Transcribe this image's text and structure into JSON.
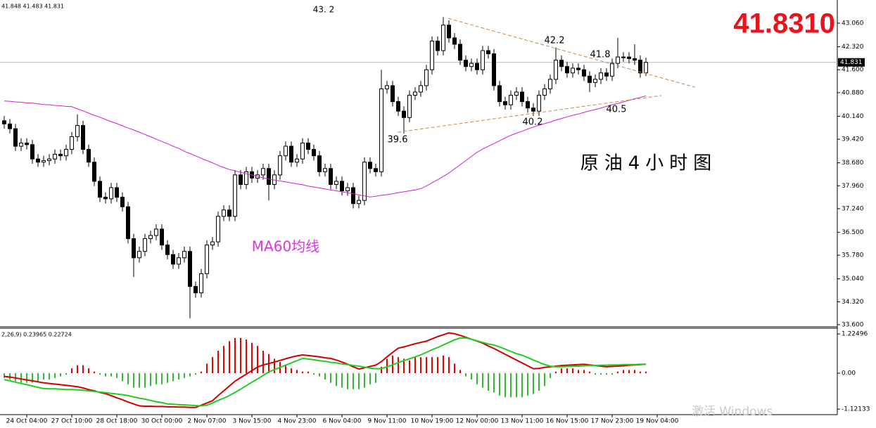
{
  "chart_data": {
    "type": "candlestick",
    "header": "41.848 41.483 41.831",
    "big_price": "41.8310",
    "annotations": [
      "43. 2",
      "42.2",
      "41.8",
      "39.6",
      "40.2",
      "40.5",
      "原油4小时图",
      "MA60均线"
    ],
    "watermark": "激活 Windows",
    "categories": [
      null,
      null,
      null,
      null,
      "24 Oct 04:00",
      null,
      null,
      null,
      null,
      null,
      null,
      null,
      "27 Oct 10:00",
      null,
      null,
      null,
      null,
      null,
      null,
      null,
      "28 Oct 18:00",
      null,
      null,
      null,
      null,
      null,
      null,
      null,
      "30 Oct 00:00",
      null,
      null,
      null,
      null,
      null,
      null,
      null,
      "2 Nov 07:00",
      null,
      null,
      null,
      null,
      null,
      null,
      null,
      "3 Nov 15:00",
      null,
      null,
      null,
      null,
      null,
      null,
      null,
      "4 Nov 23:00",
      null,
      null,
      null,
      null,
      null,
      null,
      null,
      "6 Nov 04:00",
      null,
      null,
      null,
      null,
      null,
      null,
      null,
      "9 Nov 11:00",
      null,
      null,
      null,
      null,
      null,
      null,
      null,
      "10 Nov 19:00",
      null,
      null,
      null,
      null,
      null,
      null,
      null,
      "12 Nov 00:00",
      null,
      null,
      null,
      null,
      null,
      null,
      null,
      "13 Nov 11:00",
      null,
      null,
      null,
      null,
      null,
      null,
      null,
      "16 Nov 15:00",
      null,
      null,
      null,
      null,
      null,
      null,
      null,
      "17 Nov 23:00",
      null,
      null,
      null,
      null,
      null,
      null,
      null,
      "19 Nov 04:00"
    ],
    "open": [
      40.0,
      39.9,
      39.75,
      39.2,
      39.3,
      39.25,
      38.8,
      38.7,
      38.75,
      38.8,
      38.95,
      38.9,
      39.1,
      39.5,
      39.85,
      39.1,
      38.7,
      38.1,
      37.6,
      37.55,
      37.9,
      37.6,
      37.3,
      36.3,
      35.7,
      35.9,
      36.3,
      36.4,
      36.6,
      36.1,
      35.8,
      35.5,
      35.7,
      35.9,
      34.8,
      34.6,
      35.2,
      36.1,
      36.2,
      37.0,
      37.2,
      37.0,
      38.3,
      38.0,
      38.4,
      38.2,
      38.3,
      38.5,
      38.0,
      38.3,
      38.9,
      39.2,
      38.7,
      38.8,
      39.3,
      39.1,
      38.9,
      38.4,
      38.5,
      38.0,
      38.1,
      37.8,
      37.9,
      37.4,
      37.5,
      38.7,
      38.5,
      38.4,
      41.0,
      41.1,
      40.6,
      40.3,
      40.1,
      40.8,
      40.9,
      41.1,
      41.6,
      42.5,
      42.2,
      43.0,
      42.6,
      42.4,
      41.9,
      41.7,
      41.8,
      41.6,
      42.2,
      42.1,
      41.1,
      40.6,
      40.5,
      40.8,
      40.9,
      40.6,
      40.4,
      40.3,
      40.8,
      41.0,
      41.3,
      41.9,
      41.7,
      41.5,
      41.65,
      41.6,
      41.4,
      41.2,
      41.3,
      41.5,
      41.4,
      41.8,
      42.0,
      42.0,
      41.95,
      41.9,
      41.5,
      null,
      null
    ],
    "high": [
      40.15,
      40.05,
      39.9,
      39.45,
      39.45,
      39.4,
      38.95,
      38.9,
      38.95,
      39.1,
      39.1,
      39.25,
      39.65,
      40.2,
      40.0,
      39.25,
      38.85,
      38.25,
      37.75,
      38.05,
      38.05,
      37.75,
      37.45,
      36.45,
      36.05,
      36.45,
      36.55,
      36.75,
      36.75,
      36.25,
      35.95,
      35.85,
      36.05,
      36.05,
      34.95,
      35.35,
      36.25,
      36.35,
      37.15,
      37.35,
      37.35,
      38.45,
      38.45,
      38.55,
      38.55,
      38.45,
      38.65,
      38.65,
      38.45,
      39.05,
      39.35,
      39.35,
      38.95,
      39.45,
      39.45,
      39.25,
      39.05,
      38.65,
      38.65,
      38.25,
      38.25,
      38.05,
      38.05,
      37.65,
      38.85,
      38.85,
      38.65,
      41.6,
      41.25,
      41.25,
      40.75,
      40.45,
      40.95,
      41.05,
      41.25,
      41.75,
      42.65,
      42.65,
      43.25,
      43.15,
      42.75,
      42.55,
      42.05,
      41.95,
      41.95,
      42.35,
      42.35,
      42.25,
      41.25,
      40.75,
      40.95,
      41.05,
      41.05,
      40.75,
      40.55,
      40.95,
      41.15,
      41.45,
      42.3,
      42.05,
      41.85,
      41.8,
      41.8,
      41.75,
      41.55,
      41.45,
      41.65,
      41.65,
      41.95,
      42.6,
      42.15,
      42.15,
      42.4,
      42.05,
      41.98,
      null,
      null
    ],
    "low": [
      39.75,
      39.6,
      39.05,
      39.05,
      39.1,
      38.65,
      38.55,
      38.55,
      38.6,
      38.65,
      38.75,
      38.75,
      38.95,
      39.35,
      38.95,
      38.55,
      37.95,
      37.45,
      37.4,
      37.4,
      37.45,
      37.15,
      36.15,
      35.1,
      35.55,
      35.75,
      36.15,
      36.25,
      35.95,
      35.65,
      35.35,
      35.35,
      35.55,
      33.8,
      34.45,
      34.45,
      35.05,
      35.95,
      36.05,
      36.85,
      36.85,
      36.85,
      37.85,
      37.85,
      38.05,
      38.05,
      38.15,
      37.5,
      37.85,
      38.15,
      38.75,
      38.55,
      38.55,
      38.65,
      38.95,
      38.75,
      38.25,
      38.25,
      37.85,
      37.85,
      37.65,
      37.65,
      37.25,
      37.25,
      37.35,
      38.35,
      38.25,
      38.25,
      40.85,
      40.45,
      40.15,
      39.6,
      39.95,
      40.65,
      40.75,
      40.95,
      41.45,
      42.05,
      42.05,
      42.45,
      42.25,
      41.75,
      41.55,
      41.55,
      41.45,
      41.45,
      41.95,
      40.95,
      40.45,
      40.35,
      40.35,
      40.65,
      40.45,
      40.25,
      40.15,
      40.15,
      40.65,
      40.85,
      41.15,
      41.55,
      41.35,
      41.35,
      41.45,
      41.25,
      40.9,
      41.05,
      41.15,
      41.25,
      41.25,
      41.65,
      41.85,
      41.8,
      41.75,
      41.35,
      41.4,
      null,
      null
    ],
    "close": [
      39.9,
      39.75,
      39.2,
      39.3,
      39.25,
      38.8,
      38.7,
      38.75,
      38.8,
      38.95,
      38.9,
      39.1,
      39.5,
      39.85,
      39.1,
      38.7,
      38.1,
      37.6,
      37.55,
      37.9,
      37.6,
      37.3,
      36.3,
      35.7,
      35.9,
      36.3,
      36.4,
      36.6,
      36.1,
      35.8,
      35.5,
      35.7,
      35.9,
      34.8,
      34.6,
      35.2,
      36.1,
      36.2,
      37.0,
      37.2,
      37.0,
      38.3,
      38.0,
      38.4,
      38.2,
      38.3,
      38.5,
      38.0,
      38.3,
      38.9,
      39.2,
      38.7,
      38.8,
      39.3,
      39.1,
      38.9,
      38.4,
      38.5,
      38.0,
      38.1,
      37.8,
      37.9,
      37.4,
      37.5,
      38.7,
      38.5,
      38.4,
      41.0,
      41.1,
      40.6,
      40.3,
      40.1,
      40.8,
      40.9,
      41.1,
      41.6,
      42.5,
      42.2,
      43.0,
      42.6,
      42.4,
      41.9,
      41.7,
      41.8,
      41.6,
      42.2,
      42.1,
      41.1,
      40.6,
      40.5,
      40.8,
      40.9,
      40.6,
      40.4,
      40.3,
      40.8,
      41.0,
      41.3,
      41.9,
      41.7,
      41.5,
      41.65,
      41.6,
      41.4,
      41.2,
      41.3,
      41.5,
      41.4,
      41.8,
      42.0,
      42.0,
      41.95,
      41.9,
      41.5,
      41.83,
      null,
      null
    ],
    "up_color": "#ffffff",
    "down_color": "#000000",
    "candle_outline": "#000000",
    "ma": {
      "color": "#cc22cc",
      "values": [
        40.62,
        40.61,
        40.59,
        40.58,
        40.56,
        40.55,
        40.53,
        40.51,
        40.5,
        40.48,
        40.47,
        40.45,
        40.44,
        40.37,
        40.31,
        40.24,
        40.17,
        40.11,
        40.04,
        39.97,
        39.91,
        39.84,
        39.77,
        39.71,
        39.64,
        39.57,
        39.5,
        39.42,
        39.35,
        39.28,
        39.2,
        39.13,
        39.04,
        38.97,
        38.9,
        38.82,
        38.75,
        38.68,
        38.6,
        38.53,
        38.47,
        38.43,
        38.38,
        38.34,
        38.3,
        38.25,
        38.21,
        38.17,
        38.14,
        38.11,
        38.08,
        38.05,
        38.02,
        37.99,
        37.95,
        37.92,
        37.89,
        37.86,
        37.83,
        37.8,
        37.77,
        37.74,
        37.71,
        37.67,
        37.64,
        37.61,
        37.63,
        37.66,
        37.68,
        37.71,
        37.74,
        37.77,
        37.8,
        37.83,
        37.87,
        37.95,
        38.05,
        38.15,
        38.25,
        38.36,
        38.49,
        38.62,
        38.75,
        38.88,
        39.01,
        39.11,
        39.2,
        39.28,
        39.37,
        39.46,
        39.54,
        39.61,
        39.67,
        39.74,
        39.8,
        39.86,
        39.91,
        39.96,
        40.02,
        40.07,
        40.12,
        40.17,
        40.21,
        40.26,
        40.31,
        40.35,
        40.4,
        40.45,
        40.5,
        40.54,
        40.59,
        40.64,
        40.69,
        40.73,
        40.78,
        null,
        null
      ]
    },
    "last_price": 41.831,
    "trendlines": [
      {
        "color": "#c8874a",
        "x": [
          78.9,
          122.75
        ],
        "y": [
          43.21,
          41.05
        ]
      },
      {
        "color": "#c8874a",
        "x": [
          69.9,
          116.75
        ],
        "y": [
          39.64,
          40.79
        ]
      }
    ],
    "ylim": [
      33.534,
      43.788
    ],
    "yticks": [
      {
        "value": 43.06,
        "label": "43.060"
      },
      {
        "value": 42.32,
        "label": "42.320"
      },
      {
        "value": 41.6,
        "label": "41.600"
      },
      {
        "value": 40.88,
        "label": "40.880"
      },
      {
        "value": 40.14,
        "label": "40.140"
      },
      {
        "value": 39.42,
        "label": "39.420"
      },
      {
        "value": 38.68,
        "label": "38.680"
      },
      {
        "value": 37.96,
        "label": "37.960"
      },
      {
        "value": 37.24,
        "label": "37.240"
      },
      {
        "value": 36.5,
        "label": "36.500"
      },
      {
        "value": 35.78,
        "label": "35.780"
      },
      {
        "value": 35.04,
        "label": "35.040"
      },
      {
        "value": 34.32,
        "label": "34.320"
      },
      {
        "value": 33.6,
        "label": "33.600"
      }
    ],
    "macd": {
      "label": "2,26,9) 0.23965 0.22724",
      "ylim": [
        -1.294,
        1.404
      ],
      "yticks": [
        1.22496,
        {
          "value": 0,
          "label": "0.00"
        },
        -1.12133
      ],
      "up_color": "#e00000",
      "down_color": "#33bb33",
      "main_color": "#d00000",
      "signal_color": "#22cc22",
      "histogram": [
        -0.15,
        -0.2,
        -0.25,
        -0.3,
        -0.3,
        -0.3,
        -0.25,
        -0.2,
        -0.2,
        -0.15,
        -0.1,
        -0.05,
        0.15,
        0.25,
        0.25,
        0.15,
        0.05,
        -0.05,
        -0.1,
        -0.1,
        -0.15,
        -0.25,
        -0.35,
        -0.45,
        -0.45,
        -0.45,
        -0.4,
        -0.35,
        -0.35,
        -0.3,
        -0.25,
        -0.2,
        -0.15,
        -0.1,
        -0.05,
        0.05,
        0.3,
        0.5,
        0.7,
        0.85,
        1.0,
        1.1,
        1.1,
        1.05,
        0.95,
        0.85,
        0.7,
        0.6,
        0.45,
        0.35,
        0.25,
        0.15,
        0.1,
        0.05,
        0.05,
        -0.05,
        -0.1,
        -0.2,
        -0.3,
        -0.4,
        -0.45,
        -0.5,
        -0.5,
        -0.5,
        -0.45,
        -0.35,
        -0.3,
        0.2,
        0.45,
        0.55,
        0.5,
        0.45,
        0.4,
        0.5,
        0.5,
        0.5,
        0.5,
        0.5,
        0.55,
        0.5,
        0.3,
        0.1,
        -0.1,
        -0.2,
        -0.35,
        -0.45,
        -0.55,
        -0.6,
        -0.7,
        -0.75,
        -0.75,
        -0.75,
        -0.75,
        -0.7,
        -0.65,
        -0.55,
        -0.4,
        -0.15,
        0.05,
        0.15,
        0.15,
        0.15,
        0.1,
        0.1,
        0.05,
        -0.05,
        -0.05,
        -0.05,
        -0.05,
        0.05,
        0.1,
        0.1,
        0.1,
        0.05,
        0.05,
        null,
        null
      ],
      "main": [
        -0.1,
        -0.12,
        -0.15,
        -0.18,
        -0.21,
        -0.24,
        -0.27,
        -0.3,
        -0.32,
        -0.34,
        -0.36,
        -0.38,
        -0.4,
        -0.42,
        -0.46,
        -0.51,
        -0.55,
        -0.6,
        -0.64,
        -0.7,
        -0.77,
        -0.83,
        -0.9,
        -0.96,
        -1.02,
        -1.03,
        -1.03,
        -1.04,
        -1.04,
        -1.05,
        -1.05,
        -1.06,
        -1.06,
        -1.07,
        -1.07,
        -1.0,
        -0.93,
        -0.86,
        -0.7,
        -0.55,
        -0.4,
        -0.25,
        -0.14,
        -0.03,
        0.08,
        0.19,
        0.26,
        0.3,
        0.35,
        0.4,
        0.45,
        0.5,
        0.54,
        0.57,
        0.55,
        0.53,
        0.51,
        0.48,
        0.46,
        0.41,
        0.35,
        0.28,
        0.2,
        0.13,
        0.17,
        0.21,
        0.25,
        0.36,
        0.51,
        0.65,
        0.78,
        0.82,
        0.87,
        0.92,
        0.96,
        1.0,
        1.07,
        1.14,
        1.2,
        1.26,
        1.23,
        1.18,
        1.12,
        1.06,
        1.0,
        0.94,
        0.85,
        0.77,
        0.68,
        0.59,
        0.5,
        0.41,
        0.32,
        0.23,
        0.14,
        0.15,
        0.18,
        0.2,
        0.22,
        0.24,
        0.25,
        0.26,
        0.27,
        0.28,
        0.26,
        0.24,
        0.22,
        0.2,
        0.21,
        0.22,
        0.23,
        0.25,
        0.26,
        0.27,
        0.28,
        null,
        null
      ],
      "signal": [
        -0.2,
        -0.24,
        -0.28,
        -0.32,
        -0.36,
        -0.4,
        -0.44,
        -0.48,
        -0.49,
        -0.49,
        -0.5,
        -0.51,
        -0.51,
        -0.52,
        -0.53,
        -0.55,
        -0.57,
        -0.59,
        -0.61,
        -0.63,
        -0.65,
        -0.67,
        -0.7,
        -0.74,
        -0.78,
        -0.81,
        -0.85,
        -0.89,
        -0.92,
        -0.96,
        -0.97,
        -0.98,
        -0.99,
        -1.0,
        -1.01,
        -1.02,
        -1.0,
        -0.93,
        -0.85,
        -0.78,
        -0.7,
        -0.6,
        -0.5,
        -0.39,
        -0.28,
        -0.18,
        -0.07,
        0.04,
        0.11,
        0.18,
        0.25,
        0.32,
        0.39,
        0.46,
        0.44,
        0.42,
        0.39,
        0.37,
        0.34,
        0.32,
        0.29,
        0.27,
        0.24,
        0.22,
        0.19,
        0.16,
        0.14,
        0.14,
        0.2,
        0.26,
        0.33,
        0.39,
        0.45,
        0.51,
        0.57,
        0.65,
        0.73,
        0.8,
        0.88,
        0.96,
        1.04,
        1.1,
        1.1,
        1.06,
        1.01,
        0.96,
        0.91,
        0.88,
        0.82,
        0.75,
        0.68,
        0.61,
        0.56,
        0.49,
        0.41,
        0.34,
        0.27,
        0.22,
        0.2,
        0.2,
        0.21,
        0.22,
        0.22,
        0.23,
        0.24,
        0.24,
        0.25,
        0.25,
        0.26,
        0.26,
        0.27,
        0.27,
        0.27,
        0.28,
        0.28,
        null,
        null
      ]
    }
  }
}
